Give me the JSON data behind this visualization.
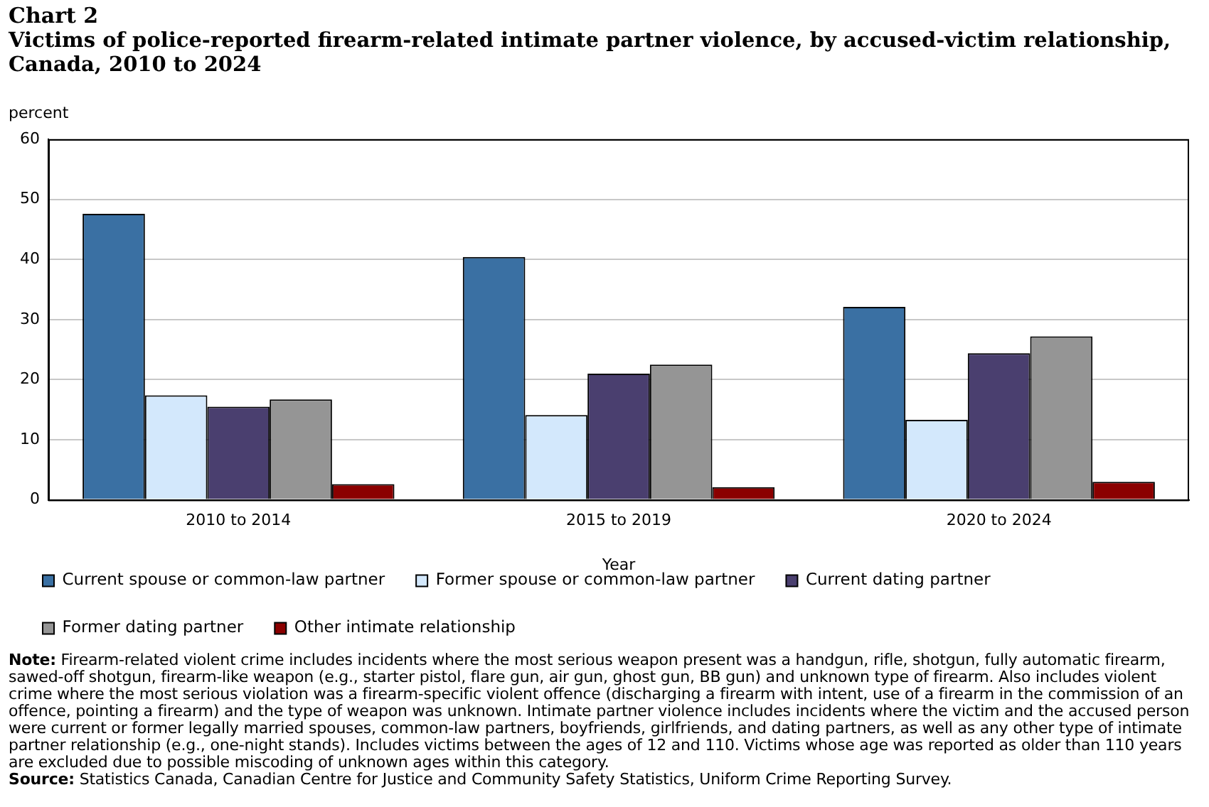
{
  "chart_data": {
    "type": "bar",
    "title": "Chart 2",
    "subtitle": "Victims of police-reported firearm-related intimate partner violence, by accused-victim relationship, Canada, 2010 to 2024",
    "ylabel": "percent",
    "xlabel": "Year",
    "categories": [
      "2010 to 2014",
      "2015 to 2019",
      "2020 to 2024"
    ],
    "series": [
      {
        "name": "Current spouse or common-law partner",
        "color": "#3a70a3",
        "values": [
          47.6,
          40.4,
          32.1
        ]
      },
      {
        "name": "Former spouse or common-law partner",
        "color": "#d3e8fc",
        "values": [
          17.4,
          14.1,
          13.3
        ]
      },
      {
        "name": "Current dating partner",
        "color": "#4a3f6f",
        "values": [
          15.5,
          21.0,
          24.4
        ]
      },
      {
        "name": "Former dating partner",
        "color": "#959595",
        "values": [
          16.7,
          22.5,
          27.2
        ]
      },
      {
        "name": "Other intimate relationship",
        "color": "#8b0000",
        "values": [
          2.6,
          2.1,
          3.0
        ]
      }
    ],
    "ylim": [
      0,
      60
    ],
    "yticks": [
      0,
      10,
      20,
      30,
      40,
      50,
      60
    ],
    "grid": "y",
    "legend": "bottom",
    "annotations": [
      "Note: Firearm-related violent crime includes incidents where the most serious weapon present was a handgun, rifle, shotgun, fully automatic firearm, sawed-off shotgun, firearm-like weapon (e.g., starter pistol, flare gun, air gun, ghost gun, BB gun) and unknown type of firearm. Also includes violent crime where the most serious violation was a firearm-specific violent offence (discharging a firearm with intent, use of a firearm in the commission of an offence, pointing a firearm) and the type of weapon was unknown. Intimate partner violence includes incidents where the victim and the accused person were current or former legally married spouses, common-law partners, boyfriends, girlfriends, and dating partners, as well as any other type of intimate partner relationship (e.g., one-night stands). Includes victims between the ages of 12 and 110. Victims whose age was reported as older than 110 years are excluded due to possible miscoding of unknown ages within this category.",
      "Source: Statistics Canada, Canadian Centre for Justice and Community Safety Statistics, Uniform Crime Reporting Survey."
    ]
  }
}
